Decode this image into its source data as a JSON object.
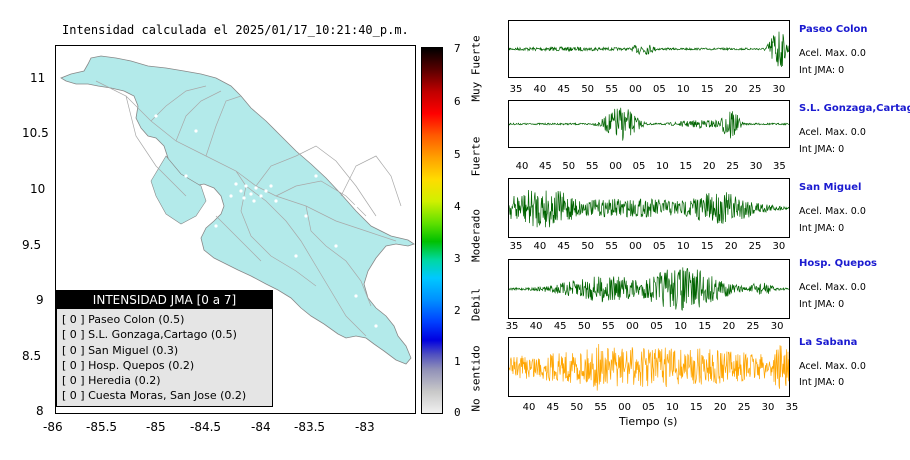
{
  "title": "Intensidad calculada el 2025/01/17_10:21:40_p.m.",
  "map": {
    "y_ticks": [
      "11",
      "10.5",
      "10",
      "9.5",
      "9",
      "8.5",
      "8"
    ],
    "x_ticks": [
      "-86",
      "-85.5",
      "-85",
      "-84.5",
      "-84",
      "-83.5",
      "-83"
    ],
    "land_color": "#b3eaea"
  },
  "colorbar": {
    "ticks": [
      "7",
      "6",
      "5",
      "4",
      "3",
      "2",
      "1",
      "0"
    ],
    "words": [
      "Muy Fuerte",
      "Fuerte",
      "Moderado",
      "Debil",
      "No sentido"
    ]
  },
  "legend": {
    "title": "INTENSIDAD JMA [0 a 7]",
    "items": [
      "[ 0 ]  Paseo Colon (0.5)",
      "[ 0 ]  S.L. Gonzaga,Cartago (0.5)",
      "[ 0 ]  San Miguel (0.3)",
      "[ 0 ]  Hosp. Quepos (0.2)",
      "[ 0 ]  Heredia (0.2)",
      "[ 0 ]  Cuesta Moras, San Jose (0.2)"
    ]
  },
  "stations": [
    {
      "name": "Paseo Colon",
      "acel": "Acel. Max. 0.0",
      "int": "Int JMA: 0",
      "color": "#006400",
      "ticks": [
        "35",
        "40",
        "45",
        "50",
        "55",
        "00",
        "05",
        "10",
        "15",
        "20",
        "25",
        "30"
      ]
    },
    {
      "name": "S.L. Gonzaga,Cartago",
      "acel": "Acel. Max. 0.0",
      "int": "Int JMA: 0",
      "color": "#006400",
      "ticks": [
        "40",
        "45",
        "50",
        "55",
        "00",
        "05",
        "10",
        "15",
        "20",
        "25",
        "30",
        "35"
      ]
    },
    {
      "name": "San Miguel",
      "acel": "Acel. Max. 0.0",
      "int": "Int JMA: 0",
      "color": "#006400",
      "ticks": [
        "35",
        "40",
        "45",
        "50",
        "55",
        "00",
        "05",
        "10",
        "15",
        "20",
        "25",
        "30"
      ]
    },
    {
      "name": "Hosp. Quepos",
      "acel": "Acel. Max. 0.0",
      "int": "Int JMA: 0",
      "color": "#006400",
      "ticks": [
        "35",
        "40",
        "45",
        "50",
        "55",
        "00",
        "05",
        "10",
        "15",
        "20",
        "25",
        "30"
      ]
    },
    {
      "name": "La Sabana",
      "acel": "Acel. Max. 0.0",
      "int": "Int JMA: 0",
      "color": "#ffa500",
      "ticks": [
        "40",
        "45",
        "50",
        "55",
        "00",
        "05",
        "10",
        "15",
        "20",
        "25",
        "30",
        "35"
      ]
    }
  ],
  "xaxis_title": "Tiempo (s)",
  "chart_data": [
    {
      "type": "heatmap",
      "title": "Intensidad calculada el 2025/01/17_10:21:40_p.m.",
      "xlim": [
        -86,
        -82.5
      ],
      "ylim": [
        8,
        11.3
      ],
      "colorbar_range": [
        0,
        7
      ],
      "legend_title": "INTENSIDAD JMA [0 a 7]",
      "stations": [
        {
          "name": "Paseo Colon",
          "intensity": 0,
          "value": 0.5
        },
        {
          "name": "S.L. Gonzaga,Cartago",
          "intensity": 0,
          "value": 0.5
        },
        {
          "name": "San Miguel",
          "intensity": 0,
          "value": 0.3
        },
        {
          "name": "Hosp. Quepos",
          "intensity": 0,
          "value": 0.2
        },
        {
          "name": "Heredia",
          "intensity": 0,
          "value": 0.2
        },
        {
          "name": "Cuesta Moras, San Jose",
          "intensity": 0,
          "value": 0.2
        }
      ]
    },
    {
      "type": "line",
      "xlabel": "Tiempo (s)",
      "series": [
        {
          "name": "Paseo Colon",
          "acel_max": 0.0,
          "int_jma": 0
        },
        {
          "name": "S.L. Gonzaga,Cartago",
          "acel_max": 0.0,
          "int_jma": 0
        },
        {
          "name": "San Miguel",
          "acel_max": 0.0,
          "int_jma": 0
        },
        {
          "name": "Hosp. Quepos",
          "acel_max": 0.0,
          "int_jma": 0
        },
        {
          "name": "La Sabana",
          "acel_max": 0.0,
          "int_jma": 0
        }
      ]
    }
  ]
}
